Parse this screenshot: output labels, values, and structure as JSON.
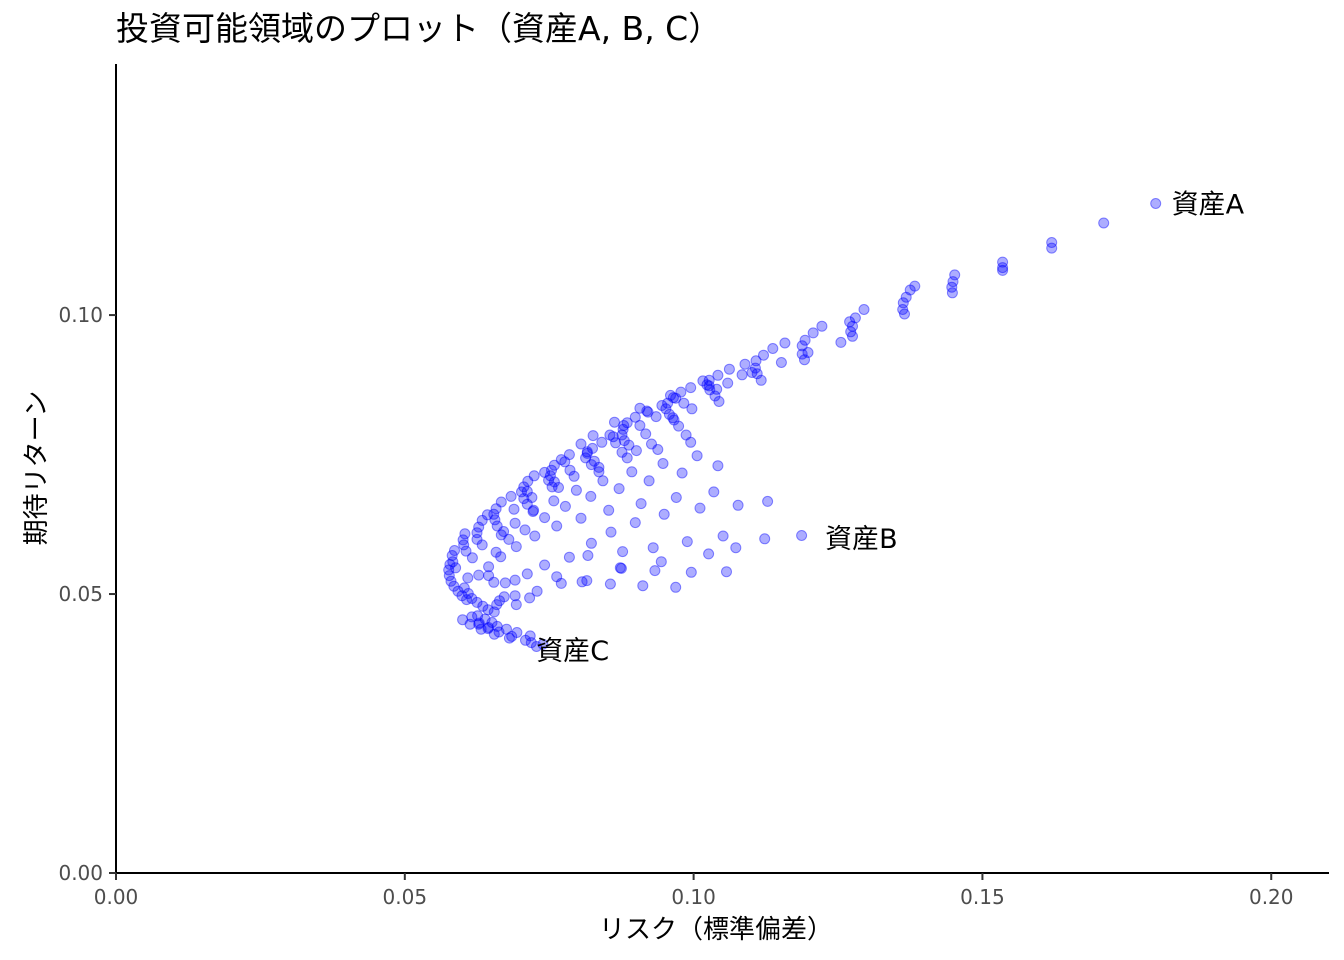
{
  "chart_data": {
    "type": "scatter",
    "title": "投資可能領域のプロット（資産A, B, C）",
    "xlabel": "リスク（標準偏差）",
    "ylabel": "期待リターン",
    "xlim": [
      0,
      0.21
    ],
    "ylim": [
      0,
      0.145
    ],
    "x_ticks": [
      "0.00",
      "0.05",
      "0.10",
      "0.15",
      "0.20"
    ],
    "y_ticks": [
      "0.00",
      "0.05",
      "0.10"
    ],
    "grid": false,
    "point_color": "#0000ff",
    "annotations": [
      {
        "text": "資産A",
        "x": 0.18,
        "y": 0.12
      },
      {
        "text": "資産B",
        "x": 0.12,
        "y": 0.06
      },
      {
        "text": "資産C",
        "x": 0.07,
        "y": 0.04
      }
    ],
    "points": [
      [
        0.18,
        0.12
      ],
      [
        0.171,
        0.1165
      ],
      [
        0.162,
        0.113
      ],
      [
        0.162,
        0.112
      ],
      [
        0.1535,
        0.1095
      ],
      [
        0.1535,
        0.1085
      ],
      [
        0.1535,
        0.108
      ],
      [
        0.1452,
        0.1072
      ],
      [
        0.1449,
        0.106
      ],
      [
        0.1447,
        0.105
      ],
      [
        0.1448,
        0.104
      ],
      [
        0.1383,
        0.1052
      ],
      [
        0.1375,
        0.1045
      ],
      [
        0.1368,
        0.1032
      ],
      [
        0.1363,
        0.1022
      ],
      [
        0.1362,
        0.101
      ],
      [
        0.1365,
        0.1002
      ],
      [
        0.1295,
        0.101
      ],
      [
        0.128,
        0.0995
      ],
      [
        0.1275,
        0.098
      ],
      [
        0.1272,
        0.097
      ],
      [
        0.1275,
        0.0962
      ],
      [
        0.127,
        0.0988
      ],
      [
        0.1222,
        0.098
      ],
      [
        0.1207,
        0.0968
      ],
      [
        0.1193,
        0.0955
      ],
      [
        0.1188,
        0.0945
      ],
      [
        0.1188,
        0.093
      ],
      [
        0.1192,
        0.092
      ],
      [
        0.1158,
        0.095
      ],
      [
        0.1137,
        0.094
      ],
      [
        0.1121,
        0.0928
      ],
      [
        0.1108,
        0.0918
      ],
      [
        0.1107,
        0.0905
      ],
      [
        0.111,
        0.0895
      ],
      [
        0.1117,
        0.0883
      ],
      [
        0.1089,
        0.0912
      ],
      [
        0.1062,
        0.0903
      ],
      [
        0.1042,
        0.0892
      ],
      [
        0.1027,
        0.0883
      ],
      [
        0.1023,
        0.0875
      ],
      [
        0.1028,
        0.0866
      ],
      [
        0.1037,
        0.0855
      ],
      [
        0.1044,
        0.0845
      ],
      [
        0.1016,
        0.0882
      ],
      [
        0.0995,
        0.087
      ],
      [
        0.0978,
        0.0862
      ],
      [
        0.0965,
        0.0852
      ],
      [
        0.0955,
        0.0842
      ],
      [
        0.0952,
        0.0832
      ],
      [
        0.0958,
        0.0822
      ],
      [
        0.0966,
        0.0812
      ],
      [
        0.0945,
        0.0838
      ],
      [
        0.0919,
        0.0828
      ],
      [
        0.0899,
        0.0817
      ],
      [
        0.0885,
        0.0807
      ],
      [
        0.0878,
        0.0795
      ],
      [
        0.0876,
        0.0785
      ],
      [
        0.088,
        0.0775
      ],
      [
        0.0888,
        0.0767
      ],
      [
        0.0901,
        0.0757
      ],
      [
        0.0861,
        0.0782
      ],
      [
        0.0841,
        0.0772
      ],
      [
        0.0825,
        0.0761
      ],
      [
        0.0816,
        0.0752
      ],
      [
        0.0813,
        0.0744
      ],
      [
        0.0823,
        0.0732
      ],
      [
        0.0836,
        0.0719
      ],
      [
        0.0785,
        0.075
      ],
      [
        0.0771,
        0.0741
      ],
      [
        0.0759,
        0.0731
      ],
      [
        0.0754,
        0.0722
      ],
      [
        0.0752,
        0.0712
      ],
      [
        0.0759,
        0.0701
      ],
      [
        0.0766,
        0.0691
      ],
      [
        0.0724,
        0.0712
      ],
      [
        0.0713,
        0.0702
      ],
      [
        0.0706,
        0.0692
      ],
      [
        0.0702,
        0.0683
      ],
      [
        0.0706,
        0.0671
      ],
      [
        0.0712,
        0.0661
      ],
      [
        0.0723,
        0.065
      ],
      [
        0.0684,
        0.0675
      ],
      [
        0.0667,
        0.0665
      ],
      [
        0.0658,
        0.0653
      ],
      [
        0.0654,
        0.0643
      ],
      [
        0.0656,
        0.0633
      ],
      [
        0.066,
        0.0622
      ],
      [
        0.0671,
        0.0612
      ],
      [
        0.0643,
        0.0642
      ],
      [
        0.0634,
        0.0632
      ],
      [
        0.0628,
        0.062
      ],
      [
        0.0625,
        0.061
      ],
      [
        0.0625,
        0.0598
      ],
      [
        0.0634,
        0.0588
      ],
      [
        0.0604,
        0.0608
      ],
      [
        0.0601,
        0.0597
      ],
      [
        0.0602,
        0.0588
      ],
      [
        0.0606,
        0.0577
      ],
      [
        0.0617,
        0.0565
      ],
      [
        0.0586,
        0.0578
      ],
      [
        0.0582,
        0.0569
      ],
      [
        0.0583,
        0.0558
      ],
      [
        0.0588,
        0.0547
      ],
      [
        0.0578,
        0.0553
      ],
      [
        0.0576,
        0.0543
      ],
      [
        0.0577,
        0.0533
      ],
      [
        0.058,
        0.0523
      ],
      [
        0.0585,
        0.0514
      ],
      [
        0.0592,
        0.0505
      ],
      [
        0.0599,
        0.0497
      ],
      [
        0.0607,
        0.049
      ],
      [
        0.0603,
        0.0511
      ],
      [
        0.061,
        0.0501
      ],
      [
        0.0616,
        0.0492
      ],
      [
        0.0625,
        0.0485
      ],
      [
        0.0635,
        0.0478
      ],
      [
        0.0644,
        0.0472
      ],
      [
        0.0655,
        0.0468
      ],
      [
        0.0659,
        0.0481
      ],
      [
        0.0672,
        0.0495
      ],
      [
        0.0693,
        0.0481
      ],
      [
        0.0716,
        0.0493
      ],
      [
        0.0626,
        0.0461
      ],
      [
        0.0639,
        0.0455
      ],
      [
        0.0651,
        0.0449
      ],
      [
        0.066,
        0.0442
      ],
      [
        0.0676,
        0.0437
      ],
      [
        0.0694,
        0.0431
      ],
      [
        0.0717,
        0.0425
      ],
      [
        0.0616,
        0.0459
      ],
      [
        0.0629,
        0.0448
      ],
      [
        0.0645,
        0.044
      ],
      [
        0.0663,
        0.0432
      ],
      [
        0.0685,
        0.0424
      ],
      [
        0.0709,
        0.0417
      ],
      [
        0.0739,
        0.041
      ],
      [
        0.06,
        0.0454
      ],
      [
        0.0613,
        0.0446
      ],
      [
        0.0632,
        0.0437
      ],
      [
        0.0655,
        0.0428
      ],
      [
        0.0681,
        0.0421
      ],
      [
        0.0719,
        0.0413
      ],
      [
        0.0728,
        0.0406
      ],
      [
        0.0628,
        0.0446
      ],
      [
        0.0644,
        0.0438
      ],
      [
        0.0609,
        0.0529
      ],
      [
        0.0628,
        0.0534
      ],
      [
        0.0645,
        0.0533
      ],
      [
        0.0654,
        0.0521
      ],
      [
        0.0674,
        0.052
      ],
      [
        0.0691,
        0.0525
      ],
      [
        0.0712,
        0.0536
      ],
      [
        0.0742,
        0.0552
      ],
      [
        0.0785,
        0.0566
      ],
      [
        0.0823,
        0.0591
      ],
      [
        0.0857,
        0.0611
      ],
      [
        0.0899,
        0.0628
      ],
      [
        0.0949,
        0.0643
      ],
      [
        0.1011,
        0.0654
      ],
      [
        0.1077,
        0.0659
      ],
      [
        0.1128,
        0.0666
      ],
      [
        0.0645,
        0.0549
      ],
      [
        0.0666,
        0.0567
      ],
      [
        0.0693,
        0.0585
      ],
      [
        0.0725,
        0.0604
      ],
      [
        0.0763,
        0.0622
      ],
      [
        0.0805,
        0.0636
      ],
      [
        0.0853,
        0.065
      ],
      [
        0.0909,
        0.0662
      ],
      [
        0.097,
        0.0673
      ],
      [
        0.1035,
        0.0683
      ],
      [
        0.0658,
        0.0575
      ],
      [
        0.068,
        0.0598
      ],
      [
        0.0708,
        0.0615
      ],
      [
        0.0742,
        0.0637
      ],
      [
        0.0778,
        0.0657
      ],
      [
        0.0822,
        0.0675
      ],
      [
        0.0871,
        0.0689
      ],
      [
        0.0923,
        0.0703
      ],
      [
        0.098,
        0.0717
      ],
      [
        0.1042,
        0.073
      ],
      [
        0.0667,
        0.0606
      ],
      [
        0.0691,
        0.0627
      ],
      [
        0.0722,
        0.0648
      ],
      [
        0.0758,
        0.0667
      ],
      [
        0.0797,
        0.0686
      ],
      [
        0.0843,
        0.0703
      ],
      [
        0.0893,
        0.0719
      ],
      [
        0.0947,
        0.0734
      ],
      [
        0.1006,
        0.0748
      ],
      [
        0.0689,
        0.0652
      ],
      [
        0.072,
        0.0673
      ],
      [
        0.0755,
        0.0692
      ],
      [
        0.0793,
        0.0711
      ],
      [
        0.0836,
        0.0727
      ],
      [
        0.0885,
        0.0744
      ],
      [
        0.0938,
        0.0759
      ],
      [
        0.0995,
        0.0772
      ],
      [
        0.0712,
        0.0684
      ],
      [
        0.0749,
        0.0704
      ],
      [
        0.0786,
        0.0722
      ],
      [
        0.0828,
        0.0738
      ],
      [
        0.0876,
        0.0754
      ],
      [
        0.0927,
        0.0769
      ],
      [
        0.0987,
        0.0785
      ],
      [
        0.0742,
        0.0718
      ],
      [
        0.0777,
        0.0737
      ],
      [
        0.0816,
        0.0755
      ],
      [
        0.0865,
        0.0771
      ],
      [
        0.0917,
        0.0787
      ],
      [
        0.0974,
        0.0801
      ],
      [
        0.0805,
        0.0769
      ],
      [
        0.0855,
        0.0785
      ],
      [
        0.0907,
        0.0802
      ],
      [
        0.0964,
        0.0816
      ],
      [
        0.0826,
        0.0784
      ],
      [
        0.0879,
        0.0802
      ],
      [
        0.0935,
        0.0818
      ],
      [
        0.0997,
        0.0832
      ],
      [
        0.0863,
        0.0808
      ],
      [
        0.0921,
        0.0826
      ],
      [
        0.0983,
        0.0842
      ],
      [
        0.0907,
        0.0833
      ],
      [
        0.0969,
        0.0851
      ],
      [
        0.104,
        0.0867
      ],
      [
        0.096,
        0.0856
      ],
      [
        0.1027,
        0.0873
      ],
      [
        0.1084,
        0.0893
      ],
      [
        0.1059,
        0.0878
      ],
      [
        0.1101,
        0.0897
      ],
      [
        0.1152,
        0.0915
      ],
      [
        0.1198,
        0.0933
      ],
      [
        0.1255,
        0.0951
      ],
      [
        0.1187,
        0.0605
      ],
      [
        0.1123,
        0.0599
      ],
      [
        0.1073,
        0.0583
      ],
      [
        0.1026,
        0.0572
      ],
      [
        0.0944,
        0.0558
      ],
      [
        0.0873,
        0.0547
      ],
      [
        0.0815,
        0.0524
      ],
      [
        0.0771,
        0.0519
      ],
      [
        0.0729,
        0.0505
      ],
      [
        0.0691,
        0.0497
      ],
      [
        0.0664,
        0.0488
      ],
      [
        0.0877,
        0.0576
      ],
      [
        0.093,
        0.0583
      ],
      [
        0.0989,
        0.0594
      ],
      [
        0.1051,
        0.0604
      ],
      [
        0.0817,
        0.0569
      ],
      [
        0.0875,
        0.0546
      ],
      [
        0.0933,
        0.0542
      ],
      [
        0.0996,
        0.0539
      ],
      [
        0.1057,
        0.054
      ],
      [
        0.0763,
        0.0531
      ],
      [
        0.0807,
        0.0522
      ],
      [
        0.0856,
        0.0518
      ],
      [
        0.0912,
        0.0515
      ],
      [
        0.0969,
        0.0512
      ]
    ]
  }
}
